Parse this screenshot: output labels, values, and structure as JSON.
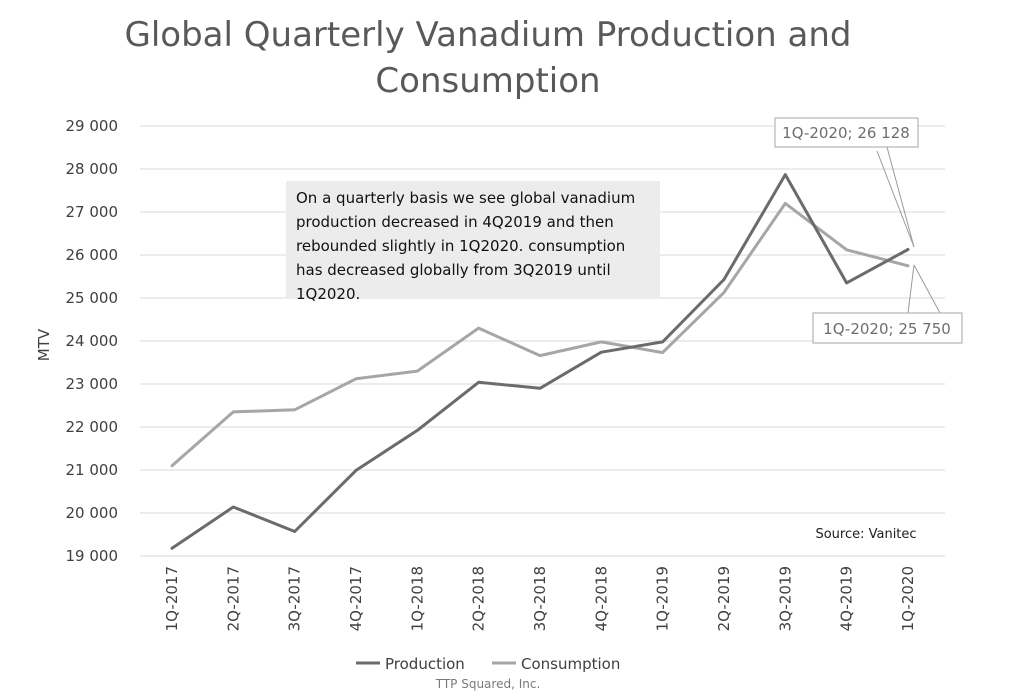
{
  "chart_data": {
    "type": "line",
    "title_lines": [
      "Global Quarterly Vanadium Production and",
      "Consumption"
    ],
    "ylabel": "MTV",
    "xlabel": "",
    "ylim": [
      19000,
      29000
    ],
    "ytick_step": 1000,
    "ytick_labels": [
      "19 000",
      "20 000",
      "21 000",
      "22 000",
      "23 000",
      "24 000",
      "25 000",
      "26 000",
      "27 000",
      "28 000",
      "29 000"
    ],
    "grid": true,
    "categories": [
      "1Q-2017",
      "2Q-2017",
      "3Q-2017",
      "4Q-2017",
      "1Q-2018",
      "2Q-2018",
      "3Q-2018",
      "4Q-2018",
      "1Q-2019",
      "2Q-2019",
      "3Q-2019",
      "4Q-2019",
      "1Q-2020"
    ],
    "series": [
      {
        "name": "Production",
        "color": "#6b6b6b",
        "values": [
          19180,
          20140,
          19570,
          20990,
          21920,
          23040,
          22900,
          23740,
          23980,
          25430,
          27870,
          25350,
          26128
        ]
      },
      {
        "name": "Consumption",
        "color": "#a6a6a6",
        "values": [
          21100,
          22350,
          22400,
          23120,
          23300,
          24300,
          23660,
          23980,
          23730,
          25130,
          27200,
          26120,
          25750
        ]
      }
    ],
    "data_labels": [
      {
        "series": "Production",
        "category": "1Q-2020",
        "text": "1Q-2020;  26 128"
      },
      {
        "series": "Consumption",
        "category": "1Q-2020",
        "text": "1Q-2020;  25 750"
      }
    ],
    "annotation": "On a quarterly basis we see global vanadium production decreased in 4Q2019 and then rebounded slightly in 1Q2020.  consumption has decreased globally from 3Q2019 until 1Q2020.",
    "source_note": "Source:  Vanitec",
    "credit": "TTP Squared, Inc.",
    "legend_position": "bottom"
  }
}
